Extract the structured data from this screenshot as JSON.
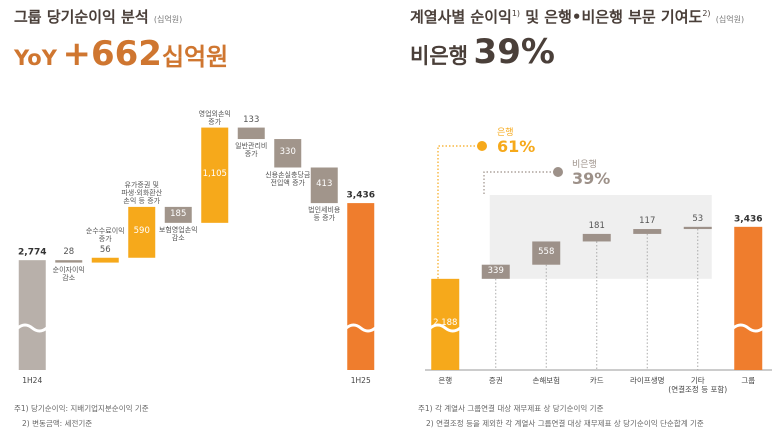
{
  "chart_data": [
    {
      "type": "waterfall",
      "title": "그룹 당기순이익 분석",
      "unit": "(십억원)",
      "headline": {
        "label": "YoY",
        "value": "+662",
        "unit": "십억원"
      },
      "categories": [
        "1H24",
        "순이자이익\n감소",
        "순수수료이익\n증가",
        "유가증권 및\n파생·외화환산\n손익 등 증가",
        "보험영업손익\n감소",
        "영업외손익\n증가",
        "일반관리비\n증가",
        "신용손실충당금\n전입액 증가",
        "법인세비용\n등 증가",
        "1H25"
      ],
      "values": [
        2774,
        -28,
        56,
        590,
        -185,
        1105,
        -133,
        -330,
        -413,
        3436
      ],
      "value_labels": [
        "2,774",
        "28",
        "56",
        "590",
        "185",
        "1,105",
        "133",
        "330",
        "413",
        "3,436"
      ],
      "colors": [
        "#b8b0aa",
        "#a1958b",
        "#f6a91b",
        "#f6a91b",
        "#a1958b",
        "#f6a91b",
        "#a1958b",
        "#a1958b",
        "#a1958b",
        "#ef7d2d"
      ],
      "ylim": [
        1500,
        4400
      ],
      "axis_break": true,
      "footnotes": [
        "주1) 당기순이익: 지배기업지분순이익 기준",
        "2) 변동금액: 세전기준"
      ]
    },
    {
      "type": "waterfall",
      "title": "계열사별 순이익",
      "title_note": "1)",
      "title_2": " 및 은행•비은행 부문 기여도",
      "title_note_2": "2)",
      "unit": "(십억원)",
      "headline": {
        "label": "비은행",
        "value": "39%"
      },
      "categories": [
        "은행",
        "증권",
        "손해보험",
        "카드",
        "라이프생명",
        "기타\n(연결조정 등 포함)",
        "그룹"
      ],
      "values": [
        2188,
        339,
        558,
        181,
        117,
        53,
        3436
      ],
      "value_labels": [
        "2,188",
        "339",
        "558",
        "181",
        "117",
        "53",
        "3,436"
      ],
      "colors": [
        "#f6a91b",
        "#9d9189",
        "#9d9189",
        "#9d9189",
        "#9d9189",
        "#9d9189",
        "#ef7d2d"
      ],
      "ylim": [
        0,
        3600
      ],
      "axis_break": true,
      "start_label_inside": true,
      "drop_lines": true,
      "axis_line": true,
      "band": true,
      "annotations": [
        {
          "label": "은행",
          "text": "61%",
          "color": "#f6a91b"
        },
        {
          "label": "비은행",
          "text": "39%",
          "color": "#9d9189"
        }
      ],
      "footnotes": [
        "주1) 각 계열사 그룹연결 대상 재무제표 상 당기순이익 기준",
        "2) 연결조정 등을 제외한 각 계열사 그룹연결 대상 재무제표 상 당기순이익 단순합계 기준"
      ]
    }
  ]
}
